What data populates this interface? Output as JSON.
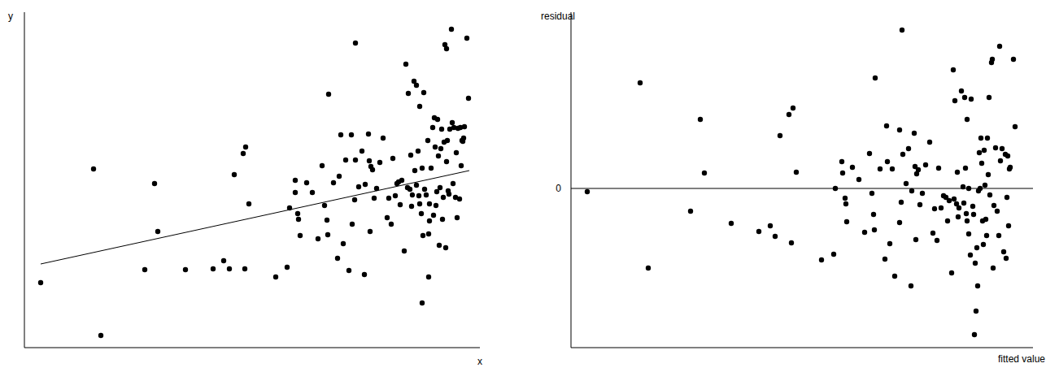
{
  "chart_data": [
    {
      "type": "scatter",
      "x_label": "x",
      "y_label": "y",
      "xlim": [
        0,
        560
      ],
      "ylim": [
        0,
        413
      ],
      "tick_labels": false,
      "series": [
        {
          "type": "scatter",
          "color": "#000000",
          "marker": "circle",
          "x": [
            20,
            85,
            94,
            148,
            160,
            164,
            198,
            232,
            245,
            252,
            271,
            258,
            269,
            272,
            276,
            309,
            323,
            326,
            333,
            333,
            336,
            337,
            339,
            347,
            354,
            361,
            366,
            369,
            372,
            374,
            373,
            380,
            385,
            387,
            389,
            392,
            395,
            399,
            402,
            403,
            407,
            406,
            407,
            411,
            415,
            418,
            419,
            423,
            424,
            425,
            426,
            428,
            430,
            433,
            437,
            441,
            446,
            448,
            451,
            453,
            456,
            458,
            460,
            462,
            464,
            467,
            469,
            471,
            472,
            474,
            475,
            476,
            477,
            479,
            480,
            482,
            482,
            484,
            485,
            486,
            486,
            488,
            489,
            490,
            491,
            492,
            494,
            496,
            497,
            489,
            497,
            498,
            498,
            500,
            502,
            503,
            504,
            505,
            506,
            507,
            508,
            509,
            510,
            511,
            512,
            513,
            514,
            515,
            516,
            517,
            518,
            519,
            519,
            520,
            521,
            522,
            523,
            525,
            526,
            527,
            528,
            530,
            531,
            532,
            533,
            535,
            536,
            537,
            538,
            539,
            540,
            541,
            544,
            546
          ],
          "values": [
            80,
            220,
            15,
            96,
            202,
            143,
            96,
            97,
            107,
            97,
            97,
            213,
            239,
            247,
            177,
            87,
            99,
            172,
            191,
            206,
            165,
            158,
            138,
            203,
            191,
            134,
            224,
            175,
            157,
            312,
            139,
            203,
            110,
            211,
            262,
            128,
            231,
            95,
            262,
            152,
            375,
            182,
            231,
            198,
            242,
            90,
            201,
            263,
            230,
            143,
            223,
            219,
            184,
            196,
            228,
            258,
            160,
            184,
            152,
            233,
            187,
            202,
            204,
            176,
            206,
            119,
            349,
            197,
            313,
            195,
            237,
            174,
            188,
            328,
            218,
            323,
            200,
            242,
            187,
            297,
            177,
            165,
            221,
            138,
            314,
            195,
            188,
            255,
            140,
            55,
            87,
            177,
            156,
            221,
            271,
            163,
            283,
            247,
            175,
            192,
            281,
            236,
            126,
            197,
            245,
            269,
            158,
            185,
            253,
            373,
            123,
            368,
            229,
            255,
            193,
            189,
            269,
            392,
            277,
            202,
            271,
            185,
            240,
            160,
            270,
            183,
            271,
            224,
            255,
            254,
            258,
            272,
            381,
            307
          ]
        },
        {
          "type": "line",
          "color": "#000000",
          "x": [
            20,
            547
          ],
          "values": [
            103,
            218
          ]
        }
      ]
    },
    {
      "type": "scatter",
      "x_label": "fitted value",
      "y_label": "residual",
      "xlim": [
        0,
        568
      ],
      "ylim": [
        -196,
        217
      ],
      "yticks": [
        0
      ],
      "grid": true,
      "tick_labels": "y",
      "series": [
        {
          "type": "scatter",
          "color": "#000000",
          "marker": "circle",
          "x": [
            20,
            85,
            95,
            147,
            159,
            164,
            197,
            231,
            245,
            251,
            257,
            268,
            273,
            271,
            277,
            308,
            323,
            325,
            333,
            334,
            337,
            338,
            339,
            346,
            354,
            361,
            367,
            370,
            372,
            374,
            373,
            380,
            386,
            388,
            389,
            392,
            395,
            398,
            404,
            404,
            407,
            406,
            408,
            412,
            415,
            418,
            419,
            422,
            423,
            424,
            425,
            427,
            429,
            432,
            436,
            441,
            445,
            447,
            450,
            452,
            455,
            458,
            461,
            463,
            465,
            468,
            470,
            471,
            472,
            474,
            475,
            476,
            477,
            480,
            482,
            484,
            483,
            485,
            486,
            487,
            487,
            489,
            489,
            491,
            492,
            494,
            495,
            497,
            498,
            496,
            500,
            499,
            501,
            502,
            503,
            504,
            505,
            506,
            507,
            508,
            509,
            510,
            511,
            512,
            513,
            514,
            515,
            517,
            518,
            519,
            520,
            522,
            524,
            526,
            527,
            528,
            530,
            532,
            534,
            535,
            536,
            537,
            538,
            539,
            540,
            544,
            546
          ],
          "values": [
            -4,
            130,
            -98,
            -28,
            85,
            19,
            -43,
            -53,
            -46,
            -59,
            65,
            91,
            99,
            -67,
            20,
            -88,
            -81,
            0,
            33,
            19,
            -12,
            -19,
            -41,
            26,
            11,
            -54,
            43,
            -6,
            -32,
            136,
            -51,
            24,
            -87,
            77,
            33,
            -68,
            24,
            -108,
            72,
            -42,
            195,
            -17,
            42,
            6,
            49,
            -120,
            -3,
            68,
            27,
            -63,
            18,
            23,
            -20,
            -6,
            29,
            57,
            -55,
            -25,
            -64,
            25,
            -24,
            -9,
            -11,
            -40,
            -15,
            -104,
            146,
            -13,
            108,
            -19,
            20,
            -35,
            -24,
            120,
            2,
            112,
            -18,
            25,
            -31,
            85,
            -40,
            -56,
            0,
            -82,
            110,
            -22,
            -32,
            -92,
            -151,
            -180,
            -120,
            -73,
            -3,
            44,
            0,
            62,
            31,
            -40,
            -69,
            47,
            4,
            -38,
            -58,
            62,
            17,
            112,
            -8,
            155,
            159,
            -98,
            -21,
            50,
            -28,
            -58,
            175,
            34,
            49,
            -78,
            42,
            -86,
            -11,
            40,
            -46,
            24,
            26,
            159,
            76
          ]
        }
      ]
    }
  ]
}
